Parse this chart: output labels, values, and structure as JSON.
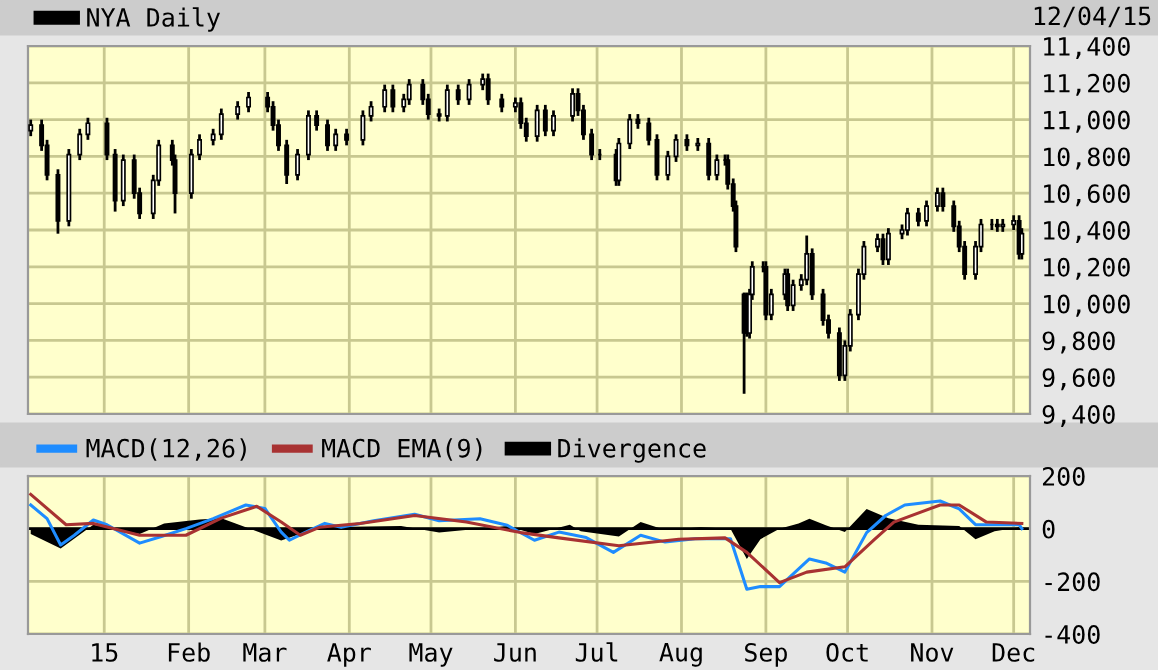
{
  "chart_data": [
    {
      "type": "candlestick",
      "legend": "top left",
      "grid": true,
      "tick_labels": "y",
      "annotations": [
        "12/04/15"
      ],
      "x": [
        "2014-12-05",
        "2014-12-09",
        "2014-12-11",
        "2014-12-15",
        "2014-12-19",
        "2014-12-23",
        "2014-12-26",
        "2015-01-02",
        "2015-01-05",
        "2015-01-08",
        "2015-01-12",
        "2015-01-14",
        "2015-01-19",
        "2015-01-21",
        "2015-01-26",
        "2015-01-27",
        "2015-02-02",
        "2015-02-05",
        "2015-02-10",
        "2015-02-13",
        "2015-02-19",
        "2015-02-23",
        "2015-03-02",
        "2015-03-04",
        "2015-03-06",
        "2015-03-09",
        "2015-03-13",
        "2015-03-17",
        "2015-03-20",
        "2015-03-24",
        "2015-03-27",
        "2015-03-31",
        "2015-04-06",
        "2015-04-09",
        "2015-04-14",
        "2015-04-17",
        "2015-04-21",
        "2015-04-23",
        "2015-04-28",
        "2015-04-30",
        "2015-05-04",
        "2015-05-07",
        "2015-05-11",
        "2015-05-15",
        "2015-05-20",
        "2015-05-22",
        "2015-05-27",
        "2015-06-01",
        "2015-06-03",
        "2015-06-05",
        "2015-06-09",
        "2015-06-12",
        "2015-06-15",
        "2015-06-22",
        "2015-06-24",
        "2015-06-26",
        "2015-06-29",
        "2015-07-02",
        "2015-07-08",
        "2015-07-09",
        "2015-07-13",
        "2015-07-16",
        "2015-07-20",
        "2015-07-23",
        "2015-07-27",
        "2015-07-30",
        "2015-08-03",
        "2015-08-07",
        "2015-08-11",
        "2015-08-14",
        "2015-08-17",
        "2015-08-18",
        "2015-08-20",
        "2015-08-21",
        "2015-08-24",
        "2015-08-25",
        "2015-08-26",
        "2015-08-27",
        "2015-08-31",
        "2015-09-01",
        "2015-09-03",
        "2015-09-08",
        "2015-09-09",
        "2015-09-11",
        "2015-09-14",
        "2015-09-16",
        "2015-09-18",
        "2015-09-22",
        "2015-09-24",
        "2015-09-28",
        "2015-09-30",
        "2015-10-02",
        "2015-10-05",
        "2015-10-07",
        "2015-10-12",
        "2015-10-14",
        "2015-10-16",
        "2015-10-21",
        "2015-10-23",
        "2015-10-27",
        "2015-10-30",
        "2015-11-03",
        "2015-11-05",
        "2015-11-09",
        "2015-11-11",
        "2015-11-13",
        "2015-11-17",
        "2015-11-19",
        "2015-11-23",
        "2015-11-25",
        "2015-11-27",
        "2015-12-01",
        "2015-12-03",
        "2015-12-04"
      ],
      "series": [
        {
          "name": "NYA Daily",
          "color": "#000000",
          "ohlc": [
            [
              10940,
              11000,
              10910,
              10970
            ],
            [
              10970,
              11000,
              10830,
              10860
            ],
            [
              10860,
              10890,
              10670,
              10700
            ],
            [
              10700,
              10730,
              10380,
              10450
            ],
            [
              10450,
              10840,
              10420,
              10810
            ],
            [
              10810,
              10950,
              10780,
              10920
            ],
            [
              10920,
              11010,
              10890,
              10980
            ],
            [
              10980,
              11010,
              10780,
              10810
            ],
            [
              10810,
              10840,
              10500,
              10560
            ],
            [
              10560,
              10810,
              10530,
              10780
            ],
            [
              10780,
              10810,
              10570,
              10600
            ],
            [
              10600,
              10630,
              10460,
              10490
            ],
            [
              10490,
              10700,
              10460,
              10670
            ],
            [
              10670,
              10890,
              10640,
              10860
            ],
            [
              10860,
              10890,
              10750,
              10780
            ],
            [
              10780,
              10810,
              10490,
              10600
            ],
            [
              10600,
              10840,
              10570,
              10810
            ],
            [
              10810,
              10920,
              10780,
              10890
            ],
            [
              10890,
              10950,
              10860,
              10920
            ],
            [
              10920,
              11060,
              10890,
              11030
            ],
            [
              11030,
              11100,
              11000,
              11070
            ],
            [
              11070,
              11150,
              11040,
              11120
            ],
            [
              11120,
              11150,
              11040,
              11070
            ],
            [
              11070,
              11100,
              10940,
              10970
            ],
            [
              10970,
              11000,
              10830,
              10860
            ],
            [
              10860,
              10890,
              10650,
              10700
            ],
            [
              10700,
              10840,
              10670,
              10810
            ],
            [
              10810,
              11050,
              10780,
              11020
            ],
            [
              11020,
              11050,
              10940,
              10970
            ],
            [
              10970,
              11000,
              10830,
              10860
            ],
            [
              10860,
              10950,
              10830,
              10920
            ],
            [
              10920,
              10950,
              10860,
              10890
            ],
            [
              10890,
              11050,
              10860,
              11020
            ],
            [
              11020,
              11100,
              10990,
              11070
            ],
            [
              11070,
              11190,
              11040,
              11160
            ],
            [
              11160,
              11190,
              11040,
              11070
            ],
            [
              11070,
              11140,
              11040,
              11110
            ],
            [
              11110,
              11220,
              11080,
              11190
            ],
            [
              11190,
              11220,
              11080,
              11110
            ],
            [
              11110,
              11140,
              11000,
              11030
            ],
            [
              11030,
              11060,
              10990,
              11020
            ],
            [
              11020,
              11190,
              10990,
              11160
            ],
            [
              11160,
              11190,
              11080,
              11110
            ],
            [
              11110,
              11220,
              11080,
              11190
            ],
            [
              11190,
              11250,
              11160,
              11220
            ],
            [
              11220,
              11250,
              11080,
              11110
            ],
            [
              11110,
              11140,
              11040,
              11070
            ],
            [
              11070,
              11120,
              11040,
              11090
            ],
            [
              11090,
              11120,
              10950,
              10980
            ],
            [
              10980,
              11010,
              10880,
              10910
            ],
            [
              10910,
              11080,
              10880,
              11050
            ],
            [
              11050,
              11080,
              10910,
              10940
            ],
            [
              10940,
              11050,
              10910,
              11020
            ],
            [
              11020,
              11170,
              10990,
              11140
            ],
            [
              11140,
              11170,
              11020,
              11050
            ],
            [
              11050,
              11080,
              10890,
              10920
            ],
            [
              10920,
              10950,
              10780,
              10810
            ],
            [
              10810,
              10840,
              10780,
              10810
            ],
            [
              10810,
              10840,
              10640,
              10670
            ],
            [
              10670,
              10900,
              10640,
              10870
            ],
            [
              10870,
              11030,
              10840,
              11000
            ],
            [
              11000,
              11030,
              10950,
              10980
            ],
            [
              10980,
              11010,
              10860,
              10890
            ],
            [
              10890,
              10920,
              10670,
              10700
            ],
            [
              10700,
              10830,
              10670,
              10800
            ],
            [
              10800,
              10920,
              10770,
              10890
            ],
            [
              10890,
              10920,
              10830,
              10860
            ],
            [
              10860,
              10900,
              10830,
              10870
            ],
            [
              10870,
              10900,
              10670,
              10700
            ],
            [
              10700,
              10810,
              10670,
              10780
            ],
            [
              10780,
              10810,
              10750,
              10780
            ],
            [
              10780,
              10810,
              10620,
              10650
            ],
            [
              10650,
              10680,
              10500,
              10530
            ],
            [
              10530,
              10560,
              10280,
              10310
            ],
            [
              10050,
              10060,
              9510,
              9840
            ],
            [
              10050,
              10060,
              9820,
              9840
            ],
            [
              9840,
              10080,
              9810,
              10050
            ],
            [
              10050,
              10230,
              10020,
              10200
            ],
            [
              10200,
              10230,
              10170,
              10200
            ],
            [
              10200,
              10230,
              9910,
              9940
            ],
            [
              9940,
              10080,
              9910,
              10050
            ],
            [
              10050,
              10190,
              10020,
              10160
            ],
            [
              10160,
              10190,
              9960,
              9990
            ],
            [
              9990,
              10130,
              9960,
              10100
            ],
            [
              10100,
              10160,
              10070,
              10130
            ],
            [
              10130,
              10370,
              10100,
              10270
            ],
            [
              10270,
              10300,
              10020,
              10050
            ],
            [
              10050,
              10080,
              9880,
              9910
            ],
            [
              9910,
              9940,
              9810,
              9840
            ],
            [
              9840,
              9870,
              9580,
              9610
            ],
            [
              9610,
              9800,
              9580,
              9770
            ],
            [
              9770,
              9970,
              9740,
              9940
            ],
            [
              9940,
              10190,
              9910,
              10160
            ],
            [
              10160,
              10340,
              10130,
              10310
            ],
            [
              10310,
              10380,
              10280,
              10350
            ],
            [
              10350,
              10380,
              10210,
              10240
            ],
            [
              10240,
              10410,
              10210,
              10380
            ],
            [
              10380,
              10430,
              10350,
              10400
            ],
            [
              10400,
              10520,
              10370,
              10490
            ],
            [
              10490,
              10520,
              10420,
              10450
            ],
            [
              10450,
              10560,
              10420,
              10530
            ],
            [
              10530,
              10630,
              10500,
              10600
            ],
            [
              10600,
              10630,
              10500,
              10530
            ],
            [
              10530,
              10560,
              10390,
              10420
            ],
            [
              10420,
              10450,
              10280,
              10310
            ],
            [
              10310,
              10340,
              10130,
              10160
            ],
            [
              10160,
              10340,
              10130,
              10310
            ],
            [
              10310,
              10460,
              10280,
              10430
            ],
            [
              10430,
              10460,
              10400,
              10430
            ],
            [
              10430,
              10460,
              10390,
              10420
            ],
            [
              10420,
              10460,
              10390,
              10430
            ],
            [
              10430,
              10480,
              10400,
              10450
            ],
            [
              10450,
              10480,
              10240,
              10270
            ],
            [
              10270,
              10410,
              10240,
              10380
            ]
          ]
        }
      ],
      "xlim": [
        "2014-12-04",
        "2015-12-07"
      ],
      "xticks": [
        {
          "value": "2015-01-01",
          "label": null
        },
        {
          "value": "2015-02-01",
          "label": null
        },
        {
          "value": "2015-03-01",
          "label": null
        },
        {
          "value": "2015-04-01",
          "label": null
        },
        {
          "value": "2015-05-01",
          "label": null
        },
        {
          "value": "2015-06-01",
          "label": null
        },
        {
          "value": "2015-07-01",
          "label": null
        },
        {
          "value": "2015-08-01",
          "label": null
        },
        {
          "value": "2015-09-01",
          "label": null
        },
        {
          "value": "2015-10-01",
          "label": null
        },
        {
          "value": "2015-11-01",
          "label": null
        },
        {
          "value": "2015-12-01",
          "label": null
        }
      ],
      "ylim": [
        9400,
        11400
      ],
      "yticks": [
        {
          "value": 9400,
          "label": "9,400"
        },
        {
          "value": 9600,
          "label": "9,600"
        },
        {
          "value": 9800,
          "label": "9,800"
        },
        {
          "value": 10000,
          "label": "10,000"
        },
        {
          "value": 10200,
          "label": "10,200"
        },
        {
          "value": 10400,
          "label": "10,400"
        },
        {
          "value": 10600,
          "label": "10,600"
        },
        {
          "value": 10800,
          "label": "10,800"
        },
        {
          "value": 11000,
          "label": "11,000"
        },
        {
          "value": 11200,
          "label": "11,200"
        },
        {
          "value": 11400,
          "label": "11,400"
        }
      ]
    },
    {
      "type": "line",
      "legend": "top left",
      "grid": true,
      "series": [
        {
          "name": "MACD(12,26)",
          "color": "#1e8cff",
          "x": [
            "2014-12-05",
            "2014-12-11",
            "2014-12-16",
            "2014-12-21",
            "2014-12-28",
            "2015-01-02",
            "2015-01-14",
            "2015-01-22",
            "2015-01-31",
            "2015-02-10",
            "2015-02-22",
            "2015-03-01",
            "2015-03-07",
            "2015-03-10",
            "2015-03-16",
            "2015-03-23",
            "2015-03-29",
            "2015-04-10",
            "2015-04-25",
            "2015-05-04",
            "2015-05-19",
            "2015-05-29",
            "2015-06-08",
            "2015-06-17",
            "2015-06-27",
            "2015-07-07",
            "2015-07-17",
            "2015-07-26",
            "2015-08-06",
            "2015-08-19",
            "2015-08-25",
            "2015-08-30",
            "2015-09-06",
            "2015-09-17",
            "2015-09-23",
            "2015-09-30",
            "2015-10-08",
            "2015-10-15",
            "2015-10-22",
            "2015-11-04",
            "2015-11-11",
            "2015-11-17",
            "2015-11-24",
            "2015-12-03",
            "2015-12-04"
          ],
          "values": [
            90,
            38,
            -62,
            -25,
            33,
            15,
            -55,
            -30,
            0,
            38,
            90,
            77,
            -13,
            -44,
            -13,
            20,
            5,
            30,
            55,
            30,
            38,
            13,
            -44,
            -13,
            -34,
            -90,
            -25,
            -51,
            -38,
            -38,
            -230,
            -220,
            -220,
            -115,
            -130,
            -165,
            -15,
            50,
            90,
            105,
            75,
            15,
            15,
            15,
            0
          ]
        },
        {
          "name": "MACD EMA(9)",
          "color": "#a83232",
          "x": [
            "2014-12-05",
            "2014-12-18",
            "2014-12-28",
            "2015-01-14",
            "2015-01-31",
            "2015-02-13",
            "2015-02-26",
            "2015-03-07",
            "2015-03-14",
            "2015-03-21",
            "2015-04-05",
            "2015-04-25",
            "2015-05-14",
            "2015-06-03",
            "2015-06-17",
            "2015-07-09",
            "2015-07-31",
            "2015-08-17",
            "2015-08-25",
            "2015-09-06",
            "2015-09-16",
            "2015-09-30",
            "2015-10-11",
            "2015-10-18",
            "2015-11-04",
            "2015-11-11",
            "2015-11-21",
            "2015-12-04"
          ],
          "values": [
            130,
            15,
            20,
            -25,
            -25,
            40,
            85,
            25,
            -25,
            5,
            20,
            50,
            25,
            -15,
            -35,
            -65,
            -40,
            -35,
            -90,
            -205,
            -165,
            -145,
            -40,
            25,
            90,
            90,
            25,
            20
          ]
        },
        {
          "name": "Divergence",
          "color": "#000000",
          "type": "area",
          "x": [
            "2014-12-05",
            "2014-12-16",
            "2014-12-28",
            "2015-01-14",
            "2015-01-23",
            "2015-02-05",
            "2015-02-13",
            "2015-03-07",
            "2015-03-21",
            "2015-04-20",
            "2015-05-04",
            "2015-05-29",
            "2015-06-08",
            "2015-06-21",
            "2015-06-25",
            "2015-07-09",
            "2015-07-17",
            "2015-07-26",
            "2015-08-08",
            "2015-08-19",
            "2015-08-25",
            "2015-08-30",
            "2015-09-06",
            "2015-09-13",
            "2015-09-17",
            "2015-09-23",
            "2015-09-30",
            "2015-10-08",
            "2015-10-16",
            "2015-10-27",
            "2015-11-11",
            "2015-11-17",
            "2015-11-24",
            "2015-12-03"
          ],
          "values": [
            -20,
            -75,
            15,
            -20,
            20,
            35,
            40,
            -45,
            5,
            10,
            -15,
            10,
            -20,
            15,
            -10,
            -30,
            25,
            -5,
            5,
            0,
            -115,
            -40,
            0,
            20,
            38,
            13,
            -13,
            75,
            40,
            15,
            10,
            -40,
            -10,
            5
          ]
        }
      ],
      "xlim": [
        "2014-12-04",
        "2015-12-07"
      ],
      "xticks": [
        {
          "value": "2015-01-01",
          "label": "15"
        },
        {
          "value": "2015-02-01",
          "label": "Feb"
        },
        {
          "value": "2015-03-01",
          "label": "Mar"
        },
        {
          "value": "2015-04-01",
          "label": "Apr"
        },
        {
          "value": "2015-05-01",
          "label": "May"
        },
        {
          "value": "2015-06-01",
          "label": "Jun"
        },
        {
          "value": "2015-07-01",
          "label": "Jul"
        },
        {
          "value": "2015-08-01",
          "label": "Aug"
        },
        {
          "value": "2015-09-01",
          "label": "Sep"
        },
        {
          "value": "2015-10-01",
          "label": "Oct"
        },
        {
          "value": "2015-11-01",
          "label": "Nov"
        },
        {
          "value": "2015-12-01",
          "label": "Dec"
        }
      ],
      "ylim": [
        -400,
        200
      ],
      "yticks": [
        {
          "value": -400,
          "label": "-400"
        },
        {
          "value": -200,
          "label": "-200"
        },
        0,
        200
      ]
    }
  ]
}
